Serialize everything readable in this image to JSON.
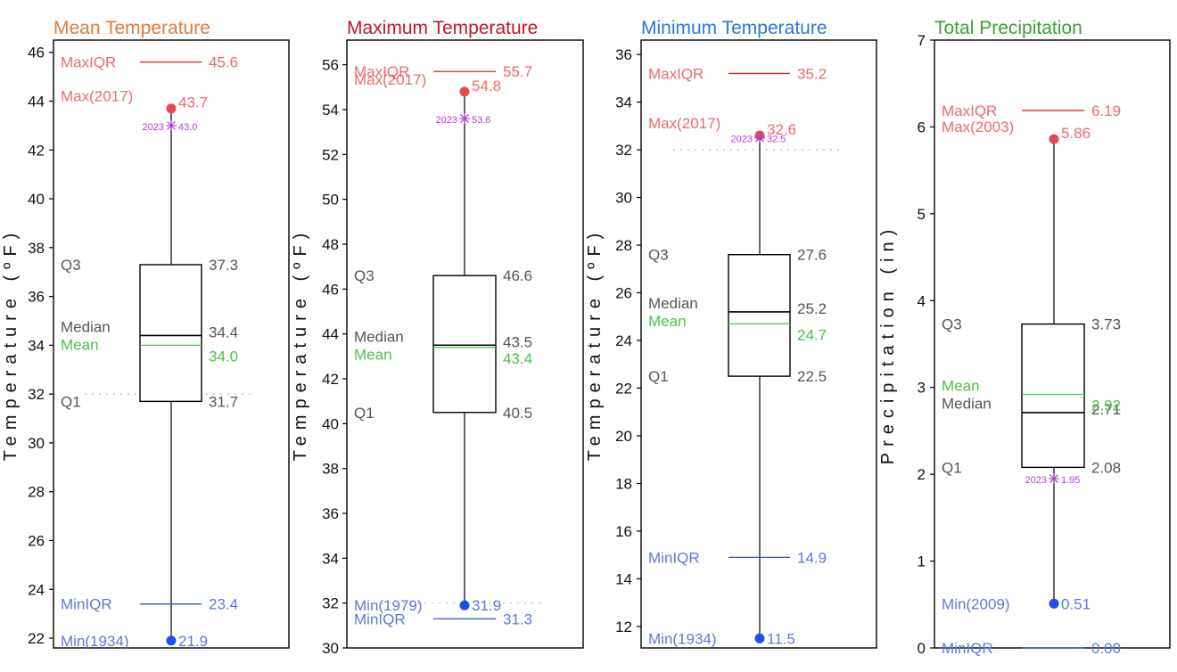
{
  "chart_data": [
    {
      "type": "box",
      "title": "Mean Temperature",
      "title_color": "#e07b39",
      "ylabel": "Temperature (ºF)",
      "ylim": [
        21.6,
        46.5
      ],
      "yticks": [
        22,
        24,
        26,
        28,
        30,
        32,
        34,
        36,
        38,
        40,
        42,
        44,
        46
      ],
      "q1": 31.7,
      "median": 34.4,
      "mean": 34.0,
      "q3": 37.3,
      "min": 21.9,
      "min_label": "Min(1934)",
      "min_text": "21.9",
      "max": 43.7,
      "max_label": "Max(2017)",
      "max_text": "43.7",
      "min_iqr": 23.4,
      "min_iqr_text": "23.4",
      "max_iqr": 45.6,
      "max_iqr_text": "45.6",
      "year_2023": 43.0,
      "year_2023_text": "2023",
      "year_2023_value_text": "43.0",
      "reference_line": 32,
      "labels": {
        "maxiqr": "MaxIQR",
        "miniqr": "MinIQR",
        "q3": "Q3",
        "q1": "Q1",
        "median": "Median",
        "mean": "Mean"
      },
      "values_text": {
        "q3": "37.3",
        "median": "34.4",
        "mean": "34.0",
        "q1": "31.7"
      }
    },
    {
      "type": "box",
      "title": "Maximum Temperature",
      "title_color": "#c0182a",
      "ylabel": "Temperature (ºF)",
      "ylim": [
        30,
        57.1
      ],
      "yticks": [
        30,
        32,
        34,
        36,
        38,
        40,
        42,
        44,
        46,
        48,
        50,
        52,
        54,
        56
      ],
      "q1": 40.5,
      "median": 43.5,
      "mean": 43.4,
      "q3": 46.6,
      "min": 31.9,
      "min_label": "Min(1979)",
      "min_text": "31.9",
      "max": 54.8,
      "max_label": "Max(2017)",
      "max_text": "54.8",
      "min_iqr": 31.3,
      "min_iqr_text": "31.3",
      "max_iqr": 55.7,
      "max_iqr_text": "55.7",
      "year_2023": 53.6,
      "year_2023_text": "2023",
      "year_2023_value_text": "53.6",
      "reference_line": 32,
      "labels": {
        "maxiqr": "MaxIQR",
        "miniqr": "MinIQR",
        "q3": "Q3",
        "q1": "Q1",
        "median": "Median",
        "mean": "Mean"
      },
      "values_text": {
        "q3": "46.6",
        "median": "43.5",
        "mean": "43.4",
        "q1": "40.5"
      }
    },
    {
      "type": "box",
      "title": "Minimum Temperature",
      "title_color": "#2b78d8",
      "ylabel": "Temperature (ºF)",
      "ylim": [
        11.1,
        36.6
      ],
      "yticks": [
        12,
        14,
        16,
        18,
        20,
        22,
        24,
        26,
        28,
        30,
        32,
        34,
        36
      ],
      "q1": 22.5,
      "median": 25.2,
      "mean": 24.7,
      "q3": 27.6,
      "min": 11.5,
      "min_label": "Min(1934)",
      "min_text": "11.5",
      "max": 32.6,
      "max_label": "Max(2017)",
      "max_text": "32.6",
      "min_iqr": 14.9,
      "min_iqr_text": "14.9",
      "max_iqr": 35.2,
      "max_iqr_text": "35.2",
      "year_2023": 32.5,
      "year_2023_text": "2023",
      "year_2023_value_text": "32.5",
      "reference_line": 32,
      "labels": {
        "maxiqr": "MaxIQR",
        "miniqr": "MinIQR",
        "q3": "Q3",
        "q1": "Q1",
        "median": "Median",
        "mean": "Mean"
      },
      "values_text": {
        "q3": "27.6",
        "median": "25.2",
        "mean": "24.7",
        "q1": "22.5"
      }
    },
    {
      "type": "box",
      "title": "Total Precipitation",
      "title_color": "#3aa035",
      "ylabel": "Precipitation (in)",
      "ylim": [
        0,
        7
      ],
      "yticks": [
        0,
        1,
        2,
        3,
        4,
        5,
        6,
        7
      ],
      "q1": 2.08,
      "median": 2.71,
      "mean": 2.92,
      "q3": 3.73,
      "min": 0.51,
      "min_label": "Min(2009)",
      "min_text": "0.51",
      "max": 5.86,
      "max_label": "Max(2003)",
      "max_text": "5.86",
      "min_iqr": 0.0,
      "min_iqr_text": "0.00",
      "max_iqr": 6.19,
      "max_iqr_text": "6.19",
      "year_2023": 1.95,
      "year_2023_text": "2023",
      "year_2023_value_text": "1.95",
      "reference_line": null,
      "labels": {
        "maxiqr": "MaxIQR",
        "miniqr": "MinIQR",
        "q3": "Q3",
        "q1": "Q1",
        "median": "Median",
        "mean": "Mean"
      },
      "values_text": {
        "q3": "3.73",
        "median": "2.71",
        "mean": "2.92",
        "q1": "2.08"
      }
    }
  ],
  "colors": {
    "frame": "#000000",
    "label_default": "#555555",
    "max": "#e8474f",
    "min": "#1f4fe8",
    "maxiqr_line": "#e02020",
    "miniqr_line": "#2f4fd0",
    "maxiqr_text": "#ee6a6a",
    "miniqr_text": "#5f78d8",
    "mean": "#4ac24a",
    "year_2023": "#b23fd6",
    "ref_dotted": "#b9b9b9"
  }
}
